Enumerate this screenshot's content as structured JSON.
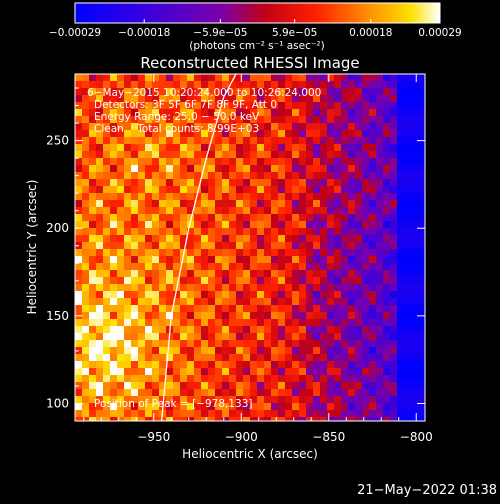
{
  "chart_data": {
    "type": "heatmap",
    "title": "Reconstructed RHESSI Image",
    "xlabel": "Heliocentric X (arcsec)",
    "ylabel": "Heliocentric Y (arcsec)",
    "xlim": [
      -995,
      -795
    ],
    "ylim": [
      90,
      288
    ],
    "xticks": [
      -950,
      -900,
      -850,
      -800
    ],
    "xtick_labels": [
      "−950",
      "−900",
      "−850",
      "−800"
    ],
    "yticks": [
      100,
      150,
      200,
      250
    ],
    "ytick_labels": [
      "100",
      "150",
      "200",
      "250"
    ],
    "colorbar": {
      "unit_label": "(photons cm⁻² s⁻¹ asec⁻²)",
      "range": [
        -0.00029,
        0.00029
      ],
      "ticks": [
        -0.00029,
        -0.00018,
        -5.9e-05,
        5.9e-05,
        0.00018,
        0.00029
      ],
      "tick_labels": [
        "−0.00029",
        "−0.00018",
        "−5.9e−05",
        "5.9e−05",
        "0.00018",
        "0.00029"
      ]
    },
    "annotations": [
      "6−May−2015 10:20:24.000 to 10:26:24.000",
      "Detectors: 3F 5F 6F 7F 8F 9F, Att 0",
      "Energy Range: 25.0 − 50.0 keV",
      "Clean    Total counts: 8.99E+03"
    ],
    "peak_label": "Position of Peak = [−978,133]",
    "peak_position": [
      -978,
      133
    ],
    "limb_curve": {
      "x": [
        -945.5,
        -940,
        -930,
        -920,
        -910,
        -903
      ],
      "y": [
        90,
        150,
        200,
        240,
        275,
        288
      ]
    },
    "grid": false,
    "colormap": "RHESSI (blue-purple-red-orange-yellow-white)"
  },
  "footer": {
    "timestamp": "21−May−2022 01:38"
  }
}
